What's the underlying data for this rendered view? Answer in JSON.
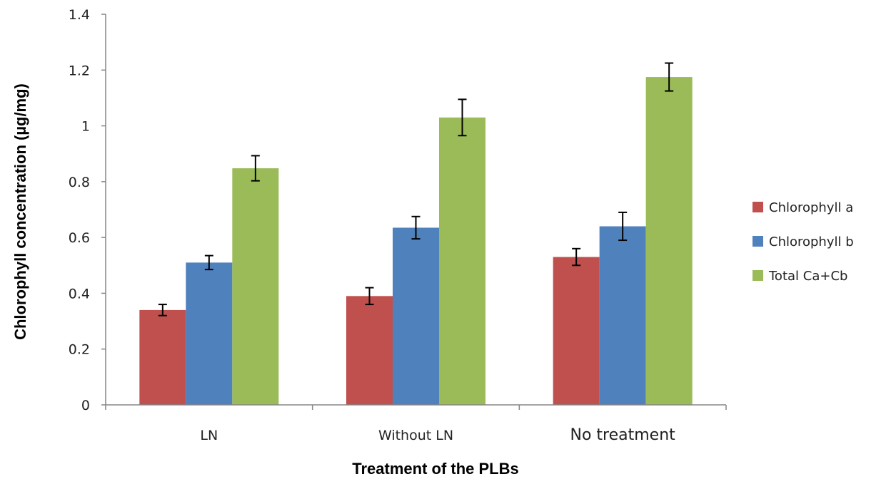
{
  "chart_data": {
    "type": "bar",
    "title": "",
    "xlabel": "Treatment of the PLBs",
    "ylabel": "Chlorophyll concentration (µg/mg)",
    "categories": [
      "LN",
      "Without LN",
      "No treatment"
    ],
    "series": [
      {
        "name": "Chlorophyll a",
        "color": "#c0504d",
        "values": [
          0.34,
          0.39,
          0.53
        ],
        "errors": [
          0.02,
          0.03,
          0.03
        ]
      },
      {
        "name": "Chlorophyll b",
        "color": "#4f81bd",
        "values": [
          0.51,
          0.635,
          0.64
        ],
        "errors": [
          0.025,
          0.04,
          0.05
        ]
      },
      {
        "name": "Total Ca+Cb",
        "color": "#9bbb59",
        "values": [
          0.848,
          1.03,
          1.175
        ],
        "errors": [
          0.045,
          0.065,
          0.05
        ]
      }
    ],
    "ylim": [
      0,
      1.4
    ],
    "yticks": [
      "0",
      "0.2",
      "0.4",
      "0.6",
      "0.8",
      "1",
      "1.2",
      "1.4"
    ],
    "grid": false,
    "legend_position": "right"
  }
}
